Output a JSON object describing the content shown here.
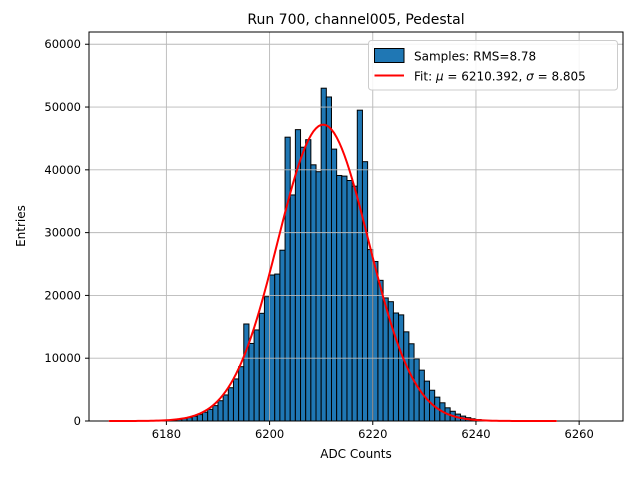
{
  "title": "Run 700, channel005, Pedestal",
  "xlabel": "ADC Counts",
  "ylabel": "Entries",
  "legend": {
    "samples_label": "Samples: RMS=8.78",
    "fit_label_parts": [
      {
        "text": "Fit: ",
        "italic": false
      },
      {
        "text": "μ",
        "italic": true
      },
      {
        "text": " = 6210.392, ",
        "italic": false
      },
      {
        "text": "σ",
        "italic": true
      },
      {
        "text": " = 8.805",
        "italic": false
      }
    ]
  },
  "colors": {
    "bar_fill": "#1f77b4",
    "bar_edge": "#000000",
    "fit_line": "#ff0000",
    "grid": "#b8b8b8",
    "frame": "#000000",
    "legend_border": "#cccccc"
  },
  "chart_data": {
    "type": "bar",
    "title": "Run 700, channel005, Pedestal",
    "xlabel": "ADC Counts",
    "ylabel": "Entries",
    "grid": true,
    "legend_position": "upper right",
    "xlim": [
      6165,
      6268.5
    ],
    "ylim": [
      0,
      61950
    ],
    "x_ticks": [
      6180,
      6200,
      6220,
      6240,
      6260
    ],
    "y_ticks": [
      0,
      10000,
      20000,
      30000,
      40000,
      50000,
      60000
    ],
    "x_tick_labels": [
      "6180",
      "6200",
      "6220",
      "6240",
      "6260"
    ],
    "y_tick_labels": [
      "0",
      "10000",
      "20000",
      "30000",
      "40000",
      "50000",
      "60000"
    ],
    "histogram": {
      "bin_start": 6172,
      "bin_width": 1,
      "counts": [
        15,
        20,
        28,
        38,
        50,
        65,
        85,
        110,
        145,
        190,
        260,
        390,
        540,
        750,
        1020,
        1400,
        1860,
        2450,
        3230,
        4150,
        5300,
        6700,
        8650,
        15450,
        12350,
        14500,
        17150,
        19800,
        23250,
        23400,
        27200,
        45200,
        36000,
        46400,
        43600,
        44800,
        40800,
        39700,
        53000,
        51600,
        43300,
        39100,
        39000,
        38300,
        37400,
        49500,
        41300,
        27300,
        25400,
        22400,
        19600,
        19000,
        17200,
        16900,
        14200,
        12300,
        9900,
        8100,
        6350,
        4900,
        3800,
        2900,
        2100,
        1550,
        1100,
        780,
        530,
        360,
        230,
        150,
        90,
        60,
        40,
        25,
        15,
        10,
        8,
        6,
        5,
        5,
        4,
        4,
        3,
        3
      ],
      "rms": 8.78
    },
    "fit": {
      "type": "gaussian",
      "mu": 6210.392,
      "sigma": 8.805,
      "amplitude": 47200,
      "x_range": [
        6169,
        6255.5
      ]
    }
  }
}
